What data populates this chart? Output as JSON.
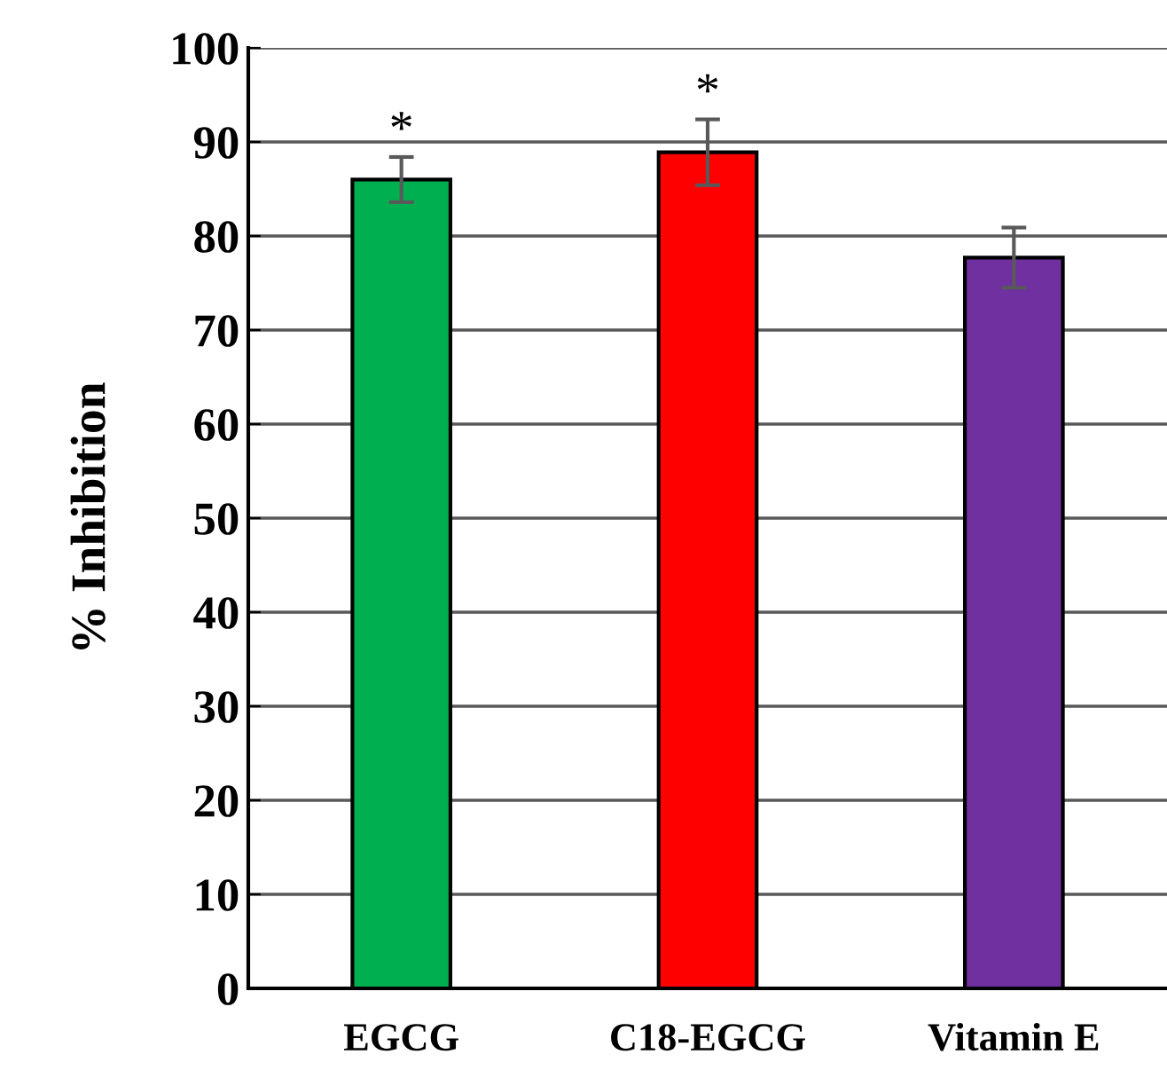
{
  "chart_data": {
    "type": "bar",
    "ylabel": "% Inhibition",
    "categories": [
      "EGCG",
      "C18-EGCG",
      "Vitamin E"
    ],
    "values": [
      86,
      88.9,
      77.7
    ],
    "errors": [
      2.4,
      3.5,
      3.2
    ],
    "colors": [
      "#00b050",
      "#ff0000",
      "#7030a0"
    ],
    "ylim": [
      0,
      100
    ],
    "yticks": [
      0,
      10,
      20,
      30,
      40,
      50,
      60,
      70,
      80,
      90,
      100
    ],
    "grid": "y",
    "annotations": [
      "*",
      "*"
    ]
  }
}
